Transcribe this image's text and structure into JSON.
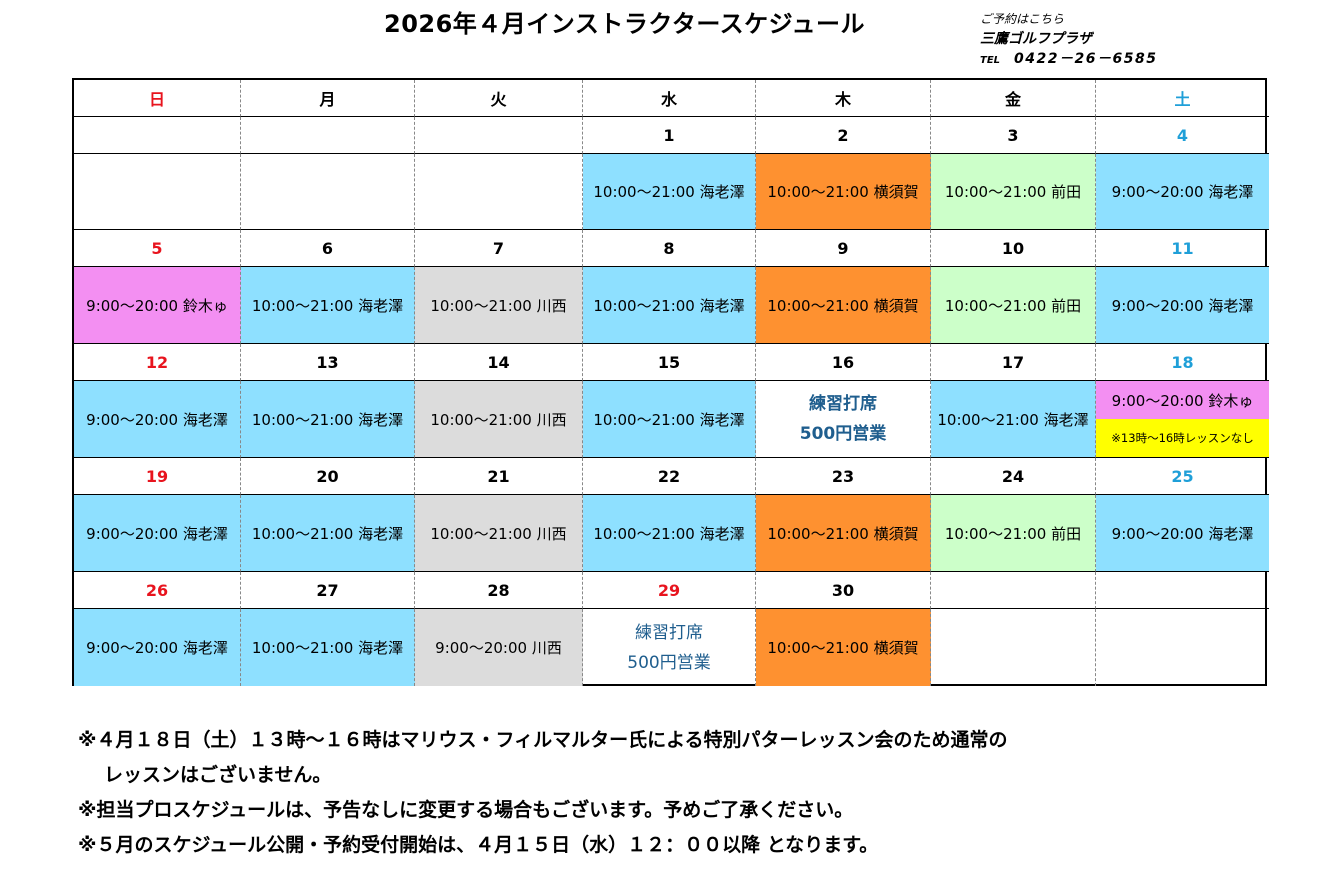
{
  "title": "2026年４月インストラクタースケジュール",
  "contact": {
    "label": "ご予約はこちら",
    "name": "三鷹ゴルフプラザ",
    "tel_label": "TEL",
    "tel": "0422－26－6585"
  },
  "weekdays": [
    "日",
    "月",
    "火",
    "水",
    "木",
    "金",
    "土"
  ],
  "special_text": {
    "line1": "練習打席",
    "line2": "500円営業"
  },
  "split_note": "※13時～16時レッスンなし",
  "weeks": [
    {
      "dates": [
        "",
        "",
        "",
        "1",
        "2",
        "3",
        "4"
      ],
      "cells": [
        {
          "text": "",
          "color": ""
        },
        {
          "text": "",
          "color": ""
        },
        {
          "text": "",
          "color": ""
        },
        {
          "text": "10:00～21:00 海老澤",
          "color": "blue"
        },
        {
          "text": "10:00～21:00 横須賀",
          "color": "orange"
        },
        {
          "text": "10:00～21:00 前田",
          "color": "green"
        },
        {
          "text": "9:00～20:00 海老澤",
          "color": "blue"
        }
      ]
    },
    {
      "dates": [
        "5",
        "6",
        "7",
        "8",
        "9",
        "10",
        "11"
      ],
      "cells": [
        {
          "text": "9:00～20:00 鈴木ゅ",
          "color": "pink"
        },
        {
          "text": "10:00～21:00 海老澤",
          "color": "blue"
        },
        {
          "text": "10:00～21:00 川西",
          "color": "gray"
        },
        {
          "text": "10:00～21:00 海老澤",
          "color": "blue"
        },
        {
          "text": "10:00～21:00 横須賀",
          "color": "orange"
        },
        {
          "text": "10:00～21:00 前田",
          "color": "green"
        },
        {
          "text": "9:00～20:00 海老澤",
          "color": "blue"
        }
      ]
    },
    {
      "dates": [
        "12",
        "13",
        "14",
        "15",
        "16",
        "17",
        "18"
      ],
      "cells": [
        {
          "text": "9:00～20:00 海老澤",
          "color": "blue"
        },
        {
          "text": "10:00～21:00 海老澤",
          "color": "blue"
        },
        {
          "text": "10:00～21:00 川西",
          "color": "gray"
        },
        {
          "text": "10:00～21:00 海老澤",
          "color": "blue"
        },
        {
          "text": "",
          "color": "special-bold"
        },
        {
          "text": "10:00～21:00 海老澤",
          "color": "blue"
        },
        {
          "text": "9:00～20:00 鈴木ゅ",
          "color": "split"
        }
      ]
    },
    {
      "dates": [
        "19",
        "20",
        "21",
        "22",
        "23",
        "24",
        "25"
      ],
      "cells": [
        {
          "text": "9:00～20:00 海老澤",
          "color": "blue"
        },
        {
          "text": "10:00～21:00 海老澤",
          "color": "blue"
        },
        {
          "text": "10:00～21:00 川西",
          "color": "gray"
        },
        {
          "text": "10:00～21:00 海老澤",
          "color": "blue"
        },
        {
          "text": "10:00～21:00 横須賀",
          "color": "orange"
        },
        {
          "text": "10:00～21:00 前田",
          "color": "green"
        },
        {
          "text": "9:00～20:00 海老澤",
          "color": "blue"
        }
      ]
    },
    {
      "dates": [
        "26",
        "27",
        "28",
        "29",
        "30",
        "",
        ""
      ],
      "cells": [
        {
          "text": "9:00～20:00 海老澤",
          "color": "blue"
        },
        {
          "text": "10:00～21:00 海老澤",
          "color": "blue"
        },
        {
          "text": "9:00～20:00 川西",
          "color": "gray"
        },
        {
          "text": "",
          "color": "special"
        },
        {
          "text": "10:00～21:00 横須賀",
          "color": "orange"
        },
        {
          "text": "",
          "color": ""
        },
        {
          "text": "",
          "color": ""
        }
      ]
    }
  ],
  "date_colors": {
    "sun": "#e8141e",
    "sat": "#1f9fd8"
  },
  "holiday_dates": [
    "29"
  ],
  "notes": [
    "※４月１８日（土）１３時～１６時はマリウス・フィルマルター氏による特別パターレッスン会のため通常の",
    "レッスンはございません。",
    "※担当プロスケジュールは、予告なしに変更する場合もございます。予めご了承ください。",
    "※５月のスケジュール公開・予約受付開始は、４月１５日（水）１２：００以降 となります。"
  ]
}
